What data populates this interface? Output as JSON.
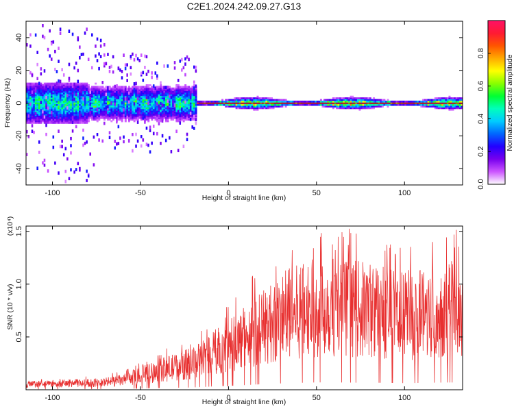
{
  "title": "C2E1.2024.242.09.27.G13",
  "chart_data": [
    {
      "type": "heatmap",
      "xlabel": "Height of straight line (km)",
      "ylabel": "Frequency (Hz)",
      "xlim": [
        -115,
        133
      ],
      "ylim": [
        -50,
        50
      ],
      "x_ticks": [
        -100,
        -50,
        0,
        50,
        100
      ],
      "y_ticks": [
        -40,
        -20,
        0,
        20,
        40
      ],
      "grid": false,
      "colorbar": {
        "label": "Normalized spectral amplitude",
        "range": [
          0,
          1
        ],
        "ticks": [
          0.0,
          0.2,
          0.4,
          0.6,
          0.8
        ],
        "colors": [
          "#ffffff",
          "#cc55ff",
          "#7700ee",
          "#2200ff",
          "#0066ff",
          "#00ccff",
          "#00ffbb",
          "#00ff33",
          "#88ff00",
          "#ffff00",
          "#ffaa00",
          "#ff5500",
          "#ff1a33",
          "#ff1166"
        ]
      }
    },
    {
      "type": "line",
      "xlabel": "Height of straight line (km)",
      "ylabel": "SNR (10 * v/v)",
      "scale_note": "(x10⁴)",
      "xlim": [
        -115,
        133
      ],
      "ylim": [
        0,
        1.55
      ],
      "x_ticks": [
        -100,
        -50,
        0,
        50,
        100
      ],
      "y_ticks": [
        0.5,
        1.0,
        1.5
      ],
      "y_tick_labels": [
        "0.5",
        "1.0",
        "1.5"
      ],
      "color": "#e83030",
      "series": [
        {
          "x": [
            -115,
            -110,
            -100,
            -90,
            -80,
            -70,
            -60,
            -50,
            -40,
            -30,
            -25,
            -20,
            -15,
            -10,
            -5,
            0,
            5,
            10,
            15,
            20,
            25,
            30,
            35,
            40,
            45,
            50,
            55,
            60,
            65,
            70,
            75,
            80,
            85,
            90,
            95,
            100,
            105,
            110,
            115,
            120,
            125,
            130,
            133
          ],
          "y": [
            0.05,
            0.06,
            0.06,
            0.07,
            0.07,
            0.08,
            0.1,
            0.15,
            0.2,
            0.24,
            0.26,
            0.28,
            0.33,
            0.38,
            0.42,
            0.46,
            0.5,
            0.56,
            0.62,
            0.66,
            0.7,
            0.76,
            0.8,
            0.82,
            0.85,
            0.86,
            0.88,
            0.88,
            0.86,
            0.85,
            0.84,
            0.84,
            0.83,
            0.82,
            0.8,
            0.78,
            0.8,
            0.82,
            0.84,
            0.85,
            0.86,
            0.85,
            0.86
          ]
        }
      ]
    }
  ]
}
